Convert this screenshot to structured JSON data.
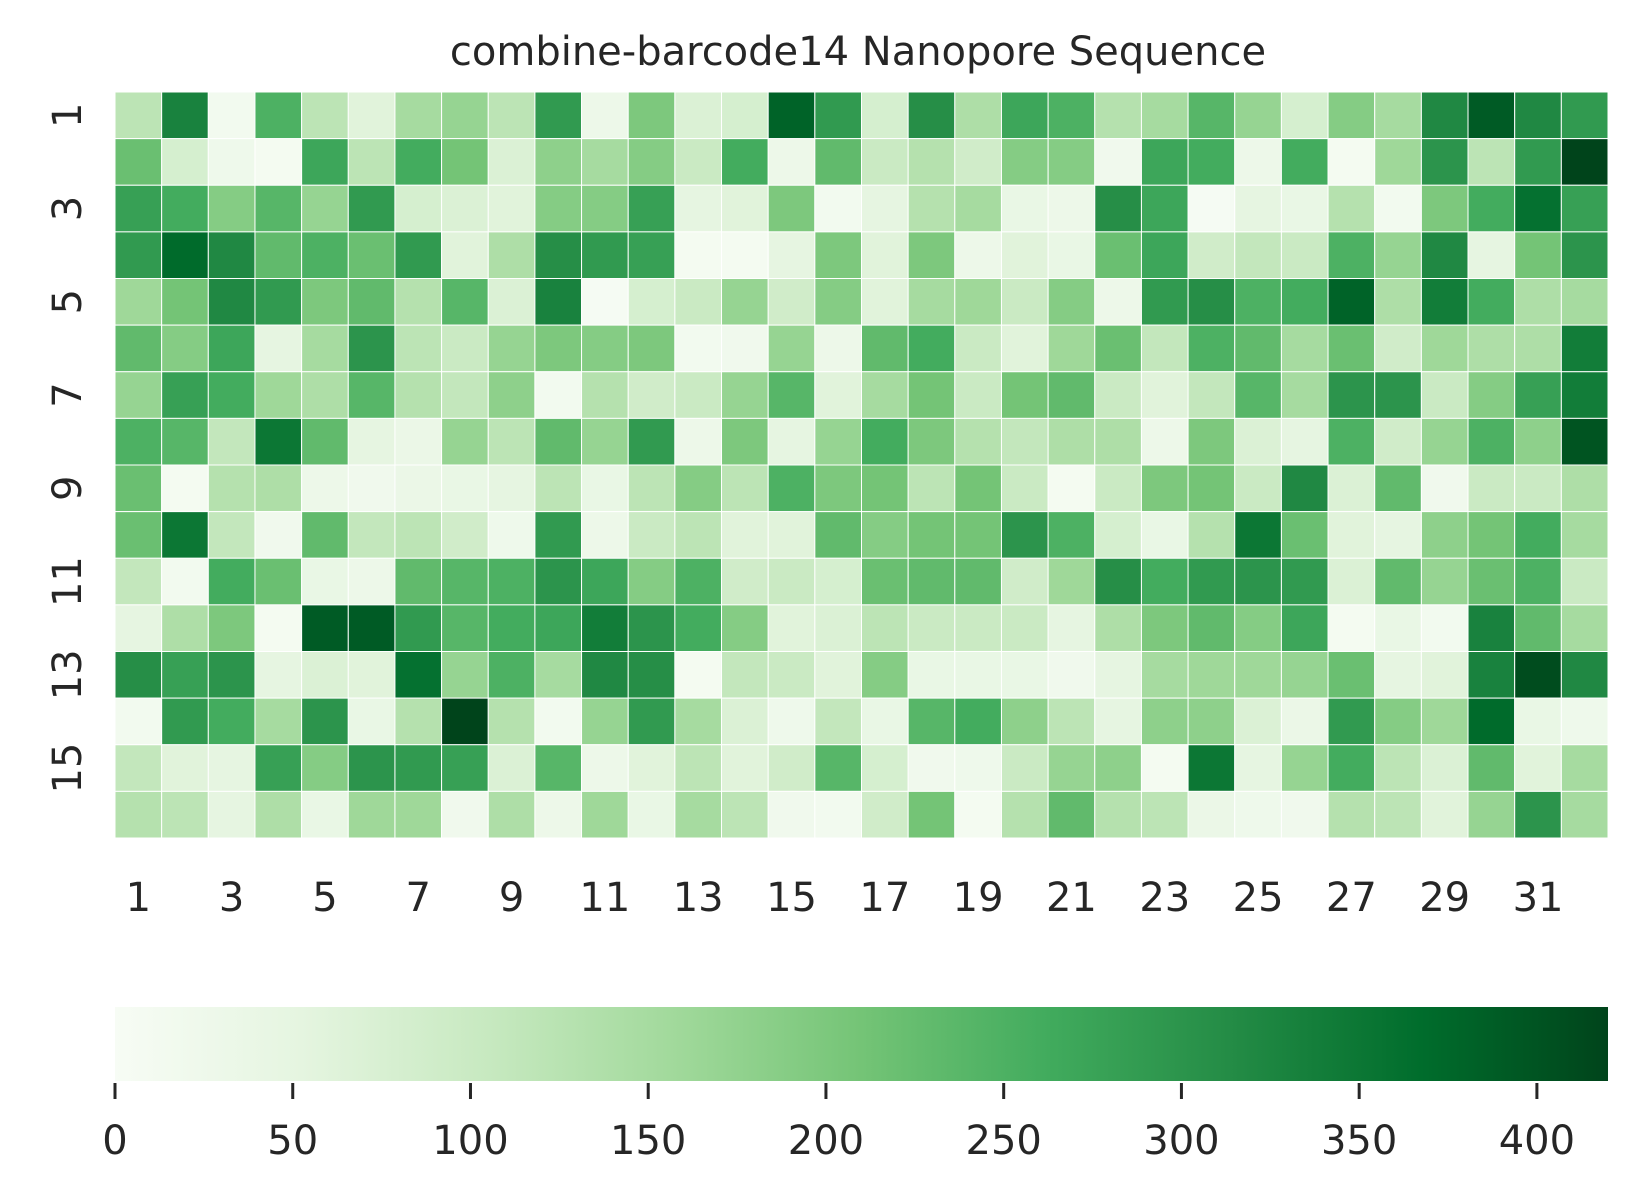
{
  "chart_data": {
    "type": "heatmap",
    "title": "combine-barcode14 Nanopore Sequence",
    "xlabel": "",
    "ylabel": "",
    "x_categories": [
      1,
      2,
      3,
      4,
      5,
      6,
      7,
      8,
      9,
      10,
      11,
      12,
      13,
      14,
      15,
      16,
      17,
      18,
      19,
      20,
      21,
      22,
      23,
      24,
      25,
      26,
      27,
      28,
      29,
      30,
      31,
      32
    ],
    "y_categories": [
      1,
      2,
      3,
      4,
      5,
      6,
      7,
      8,
      9,
      10,
      11,
      12,
      13,
      14,
      15,
      16
    ],
    "x_tick_labels": [
      "1",
      "3",
      "5",
      "7",
      "9",
      "11",
      "13",
      "15",
      "17",
      "19",
      "21",
      "23",
      "25",
      "27",
      "29",
      "31"
    ],
    "y_tick_labels": [
      "1",
      "3",
      "5",
      "7",
      "9",
      "11",
      "13",
      "15"
    ],
    "colormap": "Greens",
    "vmin": 0,
    "vmax": 420,
    "colorbar": {
      "orientation": "horizontal",
      "ticks": [
        0,
        50,
        100,
        150,
        200,
        250,
        300,
        350,
        400
      ]
    },
    "values": [
      [
        120,
        330,
        15,
        250,
        120,
        60,
        150,
        170,
        120,
        290,
        30,
        200,
        70,
        80,
        380,
        290,
        80,
        310,
        140,
        270,
        250,
        130,
        150,
        240,
        170,
        80,
        190,
        150,
        320,
        390,
        320,
        290
      ],
      [
        220,
        80,
        25,
        10,
        270,
        120,
        260,
        210,
        70,
        180,
        150,
        190,
        100,
        260,
        30,
        230,
        100,
        130,
        90,
        190,
        190,
        20,
        270,
        260,
        30,
        260,
        10,
        160,
        300,
        120,
        290,
        420
      ],
      [
        280,
        260,
        190,
        240,
        170,
        290,
        80,
        70,
        60,
        190,
        190,
        280,
        50,
        60,
        200,
        15,
        50,
        130,
        150,
        40,
        30,
        310,
        270,
        5,
        50,
        40,
        130,
        15,
        200,
        260,
        360,
        280
      ],
      [
        290,
        370,
        320,
        230,
        250,
        220,
        290,
        60,
        140,
        310,
        290,
        280,
        10,
        10,
        50,
        200,
        60,
        200,
        30,
        60,
        40,
        220,
        270,
        90,
        110,
        100,
        250,
        170,
        320,
        50,
        210,
        300
      ],
      [
        160,
        210,
        320,
        290,
        200,
        230,
        130,
        240,
        70,
        330,
        5,
        80,
        100,
        170,
        90,
        190,
        60,
        150,
        160,
        100,
        190,
        30,
        290,
        310,
        250,
        260,
        380,
        140,
        340,
        260,
        140,
        150
      ],
      [
        230,
        190,
        270,
        50,
        150,
        300,
        120,
        100,
        170,
        200,
        190,
        200,
        15,
        20,
        170,
        30,
        230,
        260,
        100,
        60,
        160,
        220,
        110,
        250,
        230,
        150,
        220,
        90,
        160,
        140,
        140,
        340
      ],
      [
        170,
        280,
        260,
        160,
        140,
        240,
        130,
        110,
        180,
        15,
        130,
        90,
        100,
        170,
        240,
        60,
        150,
        210,
        100,
        210,
        230,
        100,
        60,
        110,
        240,
        150,
        300,
        300,
        100,
        190,
        280,
        340
      ],
      [
        250,
        240,
        110,
        350,
        230,
        50,
        35,
        170,
        120,
        230,
        170,
        290,
        30,
        200,
        50,
        170,
        260,
        200,
        130,
        110,
        140,
        140,
        30,
        200,
        70,
        50,
        250,
        90,
        170,
        250,
        180,
        400
      ],
      [
        220,
        10,
        130,
        140,
        30,
        20,
        35,
        40,
        50,
        120,
        40,
        120,
        190,
        120,
        250,
        200,
        210,
        120,
        210,
        100,
        10,
        100,
        200,
        210,
        100,
        320,
        70,
        230,
        20,
        100,
        100,
        140
      ],
      [
        220,
        350,
        110,
        20,
        230,
        110,
        120,
        90,
        25,
        290,
        30,
        100,
        120,
        60,
        60,
        230,
        190,
        210,
        210,
        300,
        250,
        80,
        40,
        130,
        350,
        220,
        60,
        50,
        180,
        210,
        260,
        150
      ],
      [
        110,
        15,
        260,
        220,
        40,
        30,
        230,
        240,
        250,
        300,
        270,
        190,
        250,
        90,
        100,
        80,
        220,
        230,
        230,
        90,
        160,
        310,
        260,
        290,
        300,
        290,
        70,
        230,
        170,
        220,
        250,
        100
      ],
      [
        50,
        140,
        200,
        10,
        390,
        390,
        290,
        240,
        260,
        270,
        340,
        300,
        260,
        190,
        60,
        70,
        120,
        100,
        100,
        100,
        50,
        140,
        200,
        230,
        190,
        270,
        10,
        40,
        15,
        330,
        230,
        150
      ],
      [
        310,
        280,
        300,
        50,
        70,
        60,
        360,
        170,
        250,
        150,
        320,
        310,
        10,
        110,
        100,
        60,
        190,
        40,
        40,
        40,
        20,
        50,
        150,
        160,
        160,
        170,
        220,
        50,
        60,
        330,
        410,
        320
      ],
      [
        15,
        290,
        260,
        150,
        300,
        40,
        130,
        420,
        130,
        15,
        170,
        290,
        150,
        70,
        25,
        110,
        40,
        240,
        260,
        180,
        120,
        50,
        180,
        180,
        70,
        35,
        290,
        190,
        160,
        370,
        40,
        25
      ],
      [
        110,
        60,
        50,
        280,
        190,
        300,
        290,
        280,
        70,
        240,
        30,
        60,
        120,
        60,
        90,
        240,
        80,
        20,
        25,
        100,
        170,
        180,
        10,
        350,
        50,
        170,
        260,
        120,
        70,
        230,
        60,
        150
      ],
      [
        130,
        120,
        50,
        140,
        40,
        160,
        160,
        20,
        140,
        30,
        160,
        40,
        150,
        120,
        20,
        15,
        90,
        210,
        10,
        130,
        230,
        130,
        120,
        35,
        25,
        20,
        130,
        120,
        60,
        170,
        300,
        150
      ]
    ]
  }
}
